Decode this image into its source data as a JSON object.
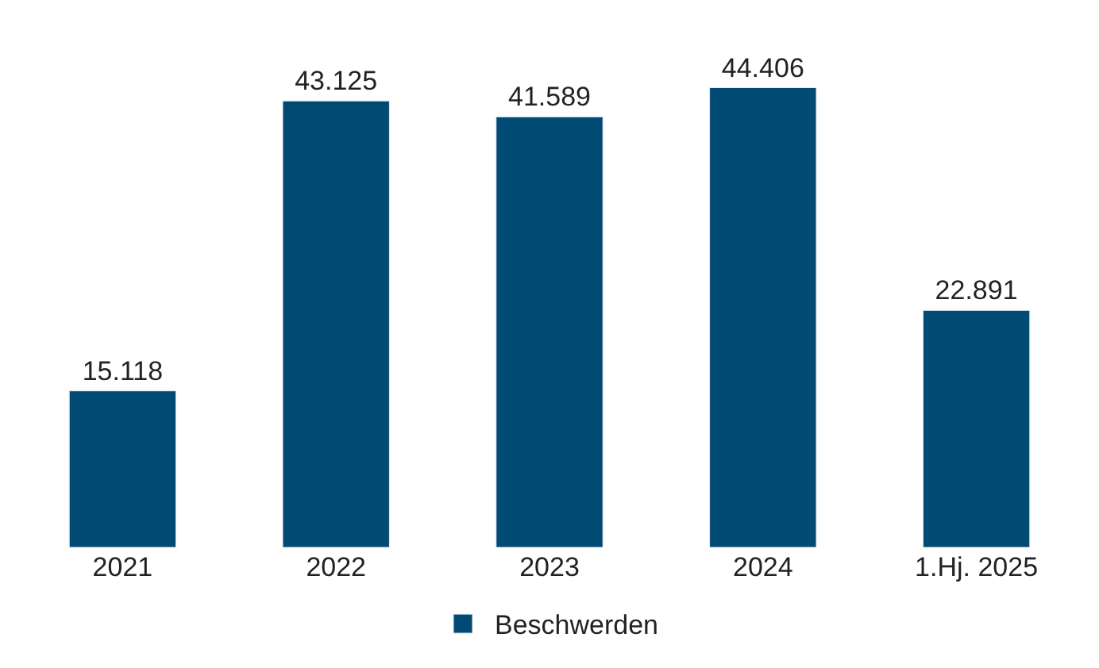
{
  "chart_data": {
    "type": "bar",
    "categories": [
      "2021",
      "2022",
      "2023",
      "2024",
      "1.Hj. 2025"
    ],
    "series": [
      {
        "name": "Beschwerden",
        "color": "#004a73",
        "values": [
          15118,
          43125,
          41589,
          44406,
          22891
        ],
        "value_labels": [
          "15.118",
          "43.125",
          "41.589",
          "44.406",
          "22.891"
        ]
      }
    ],
    "legend": "bottom"
  }
}
